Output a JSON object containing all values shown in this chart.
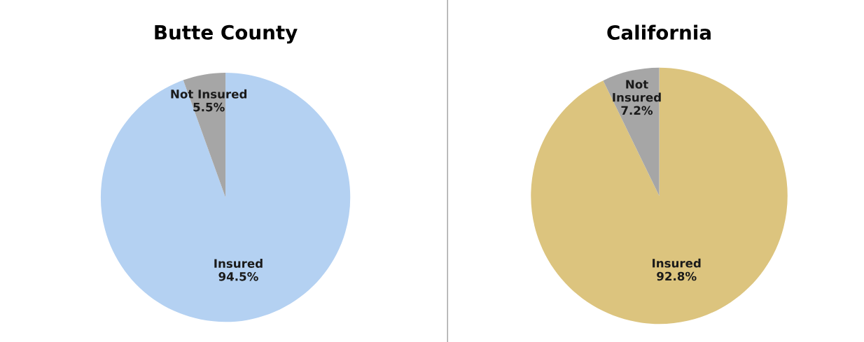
{
  "chart_data": [
    {
      "type": "pie",
      "title": "Butte County",
      "categories": [
        "Insured",
        "Not Insured"
      ],
      "values": [
        94.5,
        5.5
      ],
      "value_labels": [
        "94.5%",
        "5.5%"
      ],
      "colors": [
        "#b4d1f2",
        "#a6a6a6"
      ],
      "legend": false
    },
    {
      "type": "pie",
      "title": "California",
      "categories": [
        "Insured",
        "Not\nInsured"
      ],
      "values": [
        92.8,
        7.2
      ],
      "value_labels": [
        "92.8%",
        "7.2%"
      ],
      "colors": [
        "#dcc47e",
        "#a6a6a6"
      ],
      "legend": false
    }
  ]
}
